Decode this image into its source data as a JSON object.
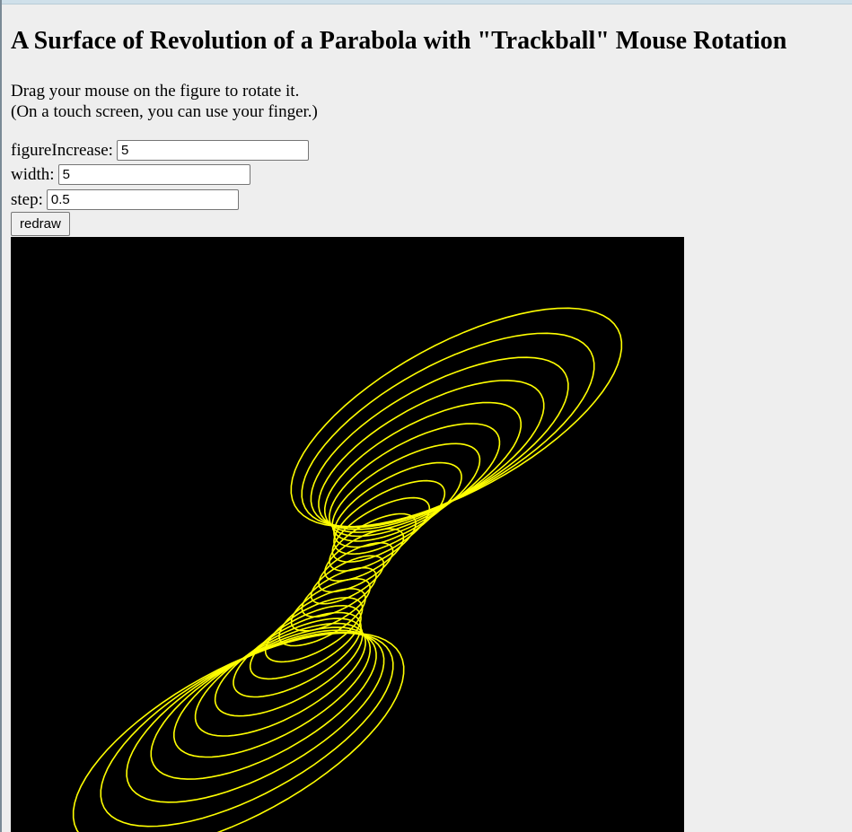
{
  "page": {
    "title": "A Surface of Revolution of a Parabola with \"Trackball\" Mouse Rotation",
    "instructions": [
      "Drag your mouse on the figure to rotate it.",
      "(On a touch screen, you can use your finger.)"
    ]
  },
  "controls": {
    "figureIncrease": {
      "label": "figureIncrease:",
      "value": "5"
    },
    "width": {
      "label": "width:",
      "value": "5"
    },
    "step": {
      "label": "step:",
      "value": "0.5"
    },
    "redraw_label": "redraw"
  },
  "figure": {
    "background": "#000000",
    "stroke": "#ffff00"
  }
}
